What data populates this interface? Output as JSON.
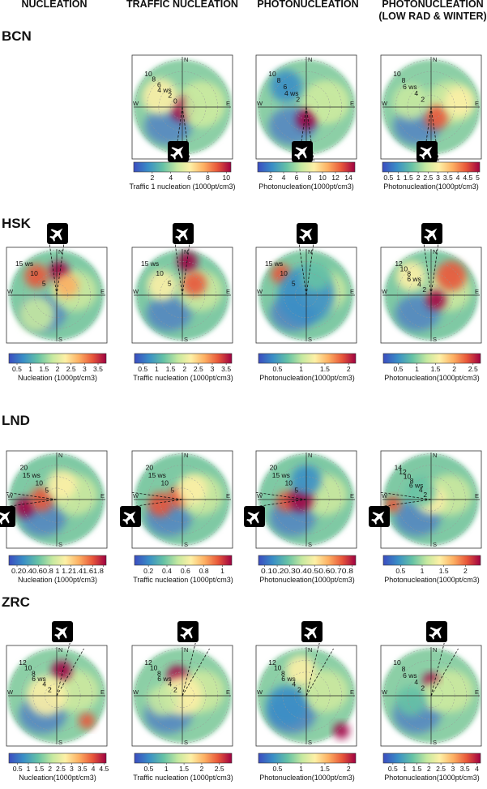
{
  "figure": {
    "column_headers": [
      {
        "line1": "NUCLEATION",
        "line2": ""
      },
      {
        "line1": "TRAFFIC NUCLEATION",
        "line2": ""
      },
      {
        "line1": "PHOTONUCLEATION",
        "line2": ""
      },
      {
        "line1": "PHOTONUCLEATION",
        "line2": "(LOW RAD & WINTER)"
      }
    ],
    "compass": [
      "N",
      "E",
      "S",
      "W"
    ],
    "airport_icon": "airplane-icon"
  },
  "chart_data": [
    {
      "type": "heatmap",
      "site": "BCN",
      "column": 1,
      "colorbar_label": "Traffic 1 nucleation (1000pt/cm3)",
      "colorbar_ticks": [
        "2",
        "4",
        "6",
        "8",
        "10"
      ],
      "colorbar_range": [
        0,
        10.5
      ],
      "ring_labels": [
        "10",
        "8",
        "6",
        "4 ws",
        "2",
        "0"
      ],
      "airport_direction": "S"
    },
    {
      "type": "heatmap",
      "site": "BCN",
      "column": 2,
      "colorbar_label": "Photonucleation(1000pt/cm3)",
      "colorbar_ticks": [
        "2",
        "4",
        "6",
        "8",
        "10",
        "12",
        "14"
      ],
      "colorbar_range": [
        0,
        15
      ],
      "ring_labels": [
        "10",
        "8",
        "6",
        "4 ws",
        "2"
      ],
      "airport_direction": "S"
    },
    {
      "type": "heatmap",
      "site": "BCN",
      "column": 3,
      "colorbar_label": "Photonucleation(1000pt/cm3)",
      "colorbar_ticks": [
        "0.5",
        "1",
        "1.5",
        "2",
        "2.5",
        "3",
        "3.5",
        "4",
        "4.5",
        "5"
      ],
      "colorbar_range": [
        0.2,
        5.1
      ],
      "ring_labels": [
        "10",
        "8",
        "6 ws",
        "4",
        "2"
      ],
      "airport_direction": "S"
    },
    {
      "type": "heatmap",
      "site": "HSK",
      "column": 0,
      "colorbar_label": "Nucleation (1000pt/cm3)",
      "colorbar_ticks": [
        "0.5",
        "1",
        "1.5",
        "2",
        "2.5",
        "3",
        "3.5"
      ],
      "colorbar_range": [
        0.2,
        3.8
      ],
      "ring_labels": [
        "15 ws",
        "10",
        "5"
      ],
      "airport_direction": "N"
    },
    {
      "type": "heatmap",
      "site": "HSK",
      "column": 1,
      "colorbar_label": "Traffic nucleation (1000pt/cm3)",
      "colorbar_ticks": [
        "0.5",
        "1",
        "1.5",
        "2",
        "2.5",
        "3",
        "3.5"
      ],
      "colorbar_range": [
        0.2,
        3.7
      ],
      "ring_labels": [
        "15 ws",
        "10",
        "5"
      ],
      "airport_direction": "N"
    },
    {
      "type": "heatmap",
      "site": "HSK",
      "column": 2,
      "colorbar_label": "Photonucleation(1000pt/cm3)",
      "colorbar_ticks": [
        "0.5",
        "1",
        "1.5",
        "2"
      ],
      "colorbar_range": [
        0.1,
        2.15
      ],
      "ring_labels": [
        "15 ws",
        "10",
        "5"
      ],
      "airport_direction": "N"
    },
    {
      "type": "heatmap",
      "site": "HSK",
      "column": 3,
      "colorbar_label": "Photonucleation(1000pt/cm3)",
      "colorbar_ticks": [
        "0.5",
        "1",
        "1.5",
        "2",
        "2.5"
      ],
      "colorbar_range": [
        0.1,
        2.7
      ],
      "ring_labels": [
        "12",
        "10",
        "8",
        "6 ws",
        "4",
        "2"
      ],
      "airport_direction": "N"
    },
    {
      "type": "heatmap",
      "site": "LND",
      "column": 0,
      "colorbar_label": "Nucleation (1000pt/cm3)",
      "colorbar_ticks": [
        "0.2",
        "0.4",
        "0.6",
        "0.8",
        "1",
        "1.2",
        "1.4",
        "1.6",
        "1.8"
      ],
      "colorbar_tick_text": "0.20.40.60.8 1 1.21.41.61.8",
      "colorbar_range": [
        0.05,
        1.85
      ],
      "ring_labels": [
        "20",
        "15 ws",
        "10",
        "5"
      ],
      "airport_direction": "W"
    },
    {
      "type": "heatmap",
      "site": "LND",
      "column": 1,
      "colorbar_label": "Traffic nucleation (1000pt/cm3)",
      "colorbar_ticks": [
        "0.2",
        "0.4",
        "0.6",
        "0.8",
        "1"
      ],
      "colorbar_range": [
        0.05,
        1.1
      ],
      "ring_labels": [
        "20",
        "15 ws",
        "10",
        "5"
      ],
      "airport_direction": "W"
    },
    {
      "type": "heatmap",
      "site": "LND",
      "column": 2,
      "colorbar_label": "Photonucleation(1000pt/cm3)",
      "colorbar_ticks": [
        "0.1",
        "0.2",
        "0.3",
        "0.4",
        "0.5",
        "0.6",
        "0.7",
        "0.8"
      ],
      "colorbar_tick_text": "0.10.20.30.40.50.60.70.8",
      "colorbar_range": [
        0.05,
        0.83
      ],
      "ring_labels": [
        "20",
        "15 ws",
        "10",
        "5"
      ],
      "airport_direction": "W"
    },
    {
      "type": "heatmap",
      "site": "LND",
      "column": 3,
      "colorbar_label": "Photonucleation(1000pt/cm3)",
      "colorbar_ticks": [
        "0.5",
        "1",
        "1.5",
        "2"
      ],
      "colorbar_range": [
        0.1,
        2.35
      ],
      "ring_labels": [
        "14",
        "12",
        "10",
        "8",
        "6 ws",
        "4",
        "2"
      ],
      "airport_direction": "W"
    },
    {
      "type": "heatmap",
      "site": "ZRC",
      "column": 0,
      "colorbar_label": "Nucleation(1000pt/cm3)",
      "colorbar_ticks": [
        "0.5",
        "1",
        "1.5",
        "2",
        "2.5",
        "3",
        "3.5",
        "4",
        "4.5"
      ],
      "colorbar_range": [
        0.1,
        4.6
      ],
      "ring_labels": [
        "12",
        "10",
        "8",
        "6 ws",
        "4",
        "2"
      ],
      "airport_direction": "NNE"
    },
    {
      "type": "heatmap",
      "site": "ZRC",
      "column": 1,
      "colorbar_label": "Traffic nucleation (1000pt/cm3)",
      "colorbar_ticks": [
        "0.5",
        "1",
        "1.5",
        "2",
        "2.5"
      ],
      "colorbar_range": [
        0.1,
        2.85
      ],
      "ring_labels": [
        "12",
        "10",
        "8",
        "6 ws",
        "4",
        "2"
      ],
      "airport_direction": "NNE"
    },
    {
      "type": "heatmap",
      "site": "ZRC",
      "column": 2,
      "colorbar_label": "Photonucleation(1000pt/cm3)",
      "colorbar_ticks": [
        "0.5",
        "1",
        "1.5",
        "2"
      ],
      "colorbar_range": [
        0.1,
        2.15
      ],
      "ring_labels": [
        "12",
        "10",
        "8",
        "6 ws",
        "4",
        "2"
      ],
      "airport_direction": "NNE"
    },
    {
      "type": "heatmap",
      "site": "ZRC",
      "column": 3,
      "colorbar_label": "Photonucleation(1000pt/cm3)",
      "colorbar_ticks": [
        "0.5",
        "1",
        "1.5",
        "2",
        "2.5",
        "3",
        "3.5",
        "4"
      ],
      "colorbar_range": [
        0.1,
        4.15
      ],
      "ring_labels": [
        "10",
        "8",
        "6 ws",
        "4",
        "2"
      ],
      "airport_direction": "NNE"
    }
  ]
}
